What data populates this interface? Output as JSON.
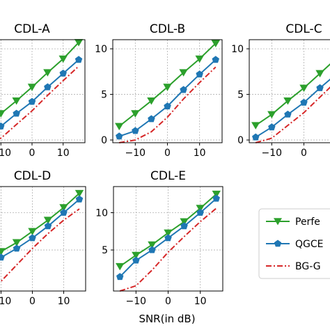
{
  "chart_data": [
    {
      "type": "line",
      "title": "CDL-A",
      "x": [
        -15,
        -10,
        -5,
        0,
        5,
        10,
        15
      ],
      "xticks": [
        -10,
        0,
        10
      ],
      "yticks": [
        0,
        5,
        10
      ],
      "xlim": [
        -17,
        17
      ],
      "ylim": [
        -0.3,
        11
      ],
      "xlabel": "",
      "ylabel": "",
      "series": [
        {
          "name": "Perfect",
          "values": [
            1.6,
            2.9,
            4.3,
            5.8,
            7.4,
            8.9,
            10.7
          ]
        },
        {
          "name": "QGCB",
          "values": [
            0.4,
            1.5,
            2.9,
            4.2,
            5.8,
            7.3,
            8.8
          ]
        },
        {
          "name": "BG-G",
          "values": [
            -0.3,
            0.2,
            1.7,
            3.2,
            4.9,
            6.5,
            8.1
          ]
        }
      ]
    },
    {
      "type": "line",
      "title": "CDL-B",
      "x": [
        -15,
        -10,
        -5,
        0,
        5,
        10,
        15
      ],
      "xticks": [
        -10,
        0,
        10
      ],
      "yticks": [
        0,
        5,
        10
      ],
      "xlim": [
        -17,
        17
      ],
      "ylim": [
        -0.3,
        11
      ],
      "xlabel": "",
      "ylabel": "",
      "series": [
        {
          "name": "Perfect",
          "values": [
            1.5,
            2.9,
            4.3,
            5.8,
            7.4,
            8.9,
            10.6
          ]
        },
        {
          "name": "QGCB",
          "values": [
            0.4,
            1.0,
            2.3,
            3.7,
            5.5,
            7.2,
            8.8
          ]
        },
        {
          "name": "BG-G",
          "values": [
            -0.3,
            0.0,
            0.9,
            2.5,
            4.5,
            6.3,
            8.0
          ]
        }
      ]
    },
    {
      "type": "line",
      "title": "CDL-C",
      "x": [
        -15,
        -10,
        -5,
        0,
        5,
        10,
        15
      ],
      "xticks": [
        -10,
        0
      ],
      "yticks": [
        0,
        5,
        10
      ],
      "xlim": [
        -17,
        17
      ],
      "ylim": [
        -0.3,
        11
      ],
      "xlabel": "",
      "ylabel": "",
      "series": [
        {
          "name": "Perfect",
          "values": [
            1.6,
            2.8,
            4.3,
            5.7,
            7.3,
            8.9,
            10.6
          ]
        },
        {
          "name": "QGCB",
          "values": [
            0.3,
            1.4,
            2.8,
            4.1,
            5.7,
            7.2,
            8.8
          ]
        },
        {
          "name": "BG-G",
          "values": [
            -0.3,
            0.2,
            1.6,
            3.0,
            4.7,
            6.4,
            8.0
          ]
        }
      ]
    },
    {
      "type": "line",
      "title": "CDL-D",
      "x": [
        -15,
        -10,
        -5,
        0,
        5,
        10,
        15
      ],
      "xticks": [
        -10,
        0,
        10
      ],
      "yticks": [
        5,
        10
      ],
      "xlim": [
        -17,
        17
      ],
      "ylim": [
        -0.5,
        13.5
      ],
      "xlabel": "",
      "ylabel": "",
      "series": [
        {
          "name": "Perfect",
          "values": [
            3.2,
            4.8,
            6.0,
            7.5,
            9.0,
            10.7,
            12.6
          ]
        },
        {
          "name": "QGCB",
          "values": [
            2.5,
            4.0,
            5.2,
            6.6,
            8.2,
            10.0,
            11.8
          ]
        },
        {
          "name": "BG-G",
          "values": [
            -0.5,
            0.8,
            3.0,
            5.2,
            7.2,
            9.0,
            10.5
          ]
        }
      ]
    },
    {
      "type": "line",
      "title": "CDL-E",
      "x": [
        -15,
        -10,
        -5,
        0,
        5,
        10,
        15
      ],
      "xticks": [
        -10,
        0,
        10
      ],
      "yticks": [
        5,
        10
      ],
      "xlim": [
        -17,
        17
      ],
      "ylim": [
        -0.5,
        13.5
      ],
      "xlabel": "SNR(in dB)",
      "ylabel": "",
      "series": [
        {
          "name": "Perfect",
          "values": [
            2.8,
            4.3,
            5.7,
            7.3,
            8.8,
            10.6,
            12.5
          ]
        },
        {
          "name": "QGCB",
          "values": [
            1.4,
            3.6,
            5.0,
            6.6,
            8.2,
            10.0,
            11.9
          ]
        },
        {
          "name": "BG-G",
          "values": [
            -0.5,
            0.2,
            2.3,
            4.7,
            6.8,
            8.8,
            10.6
          ]
        }
      ]
    }
  ],
  "legend": {
    "placement": "bottom-right",
    "entries": [
      "Perfe",
      "QGCE",
      "BG-G"
    ]
  },
  "colors": {
    "Perfect": "#2ca02c",
    "QGCB": "#1f77b4",
    "BG-G": "#d62728",
    "grid": "#b0b0b0"
  }
}
